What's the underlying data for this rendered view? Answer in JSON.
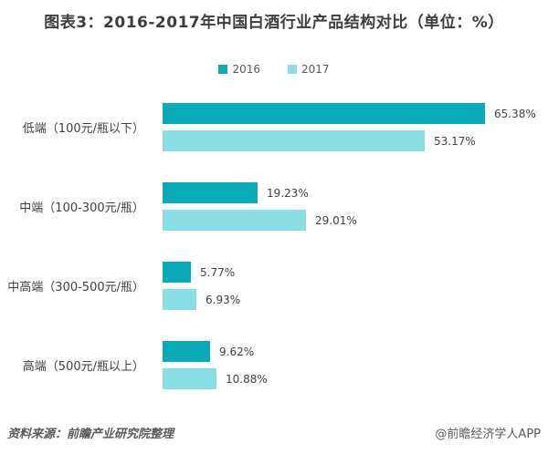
{
  "title": "图表3：2016-2017年中国白酒行业产品结构对比（单位：%）",
  "chart_data": {
    "type": "bar",
    "orientation": "horizontal",
    "title": "图表3：2016-2017年中国白酒行业产品结构对比（单位：%）",
    "unit": "%",
    "categories": [
      "低端（100元/瓶以下）",
      "中端（100-300元/瓶）",
      "中高端（300-500元/瓶）",
      "高端（500元/瓶以上）"
    ],
    "series": [
      {
        "name": "2016",
        "color": "#0baab8",
        "values": [
          65.38,
          19.23,
          5.77,
          9.62
        ],
        "labels": [
          "65.38%",
          "19.23%",
          "5.77%",
          "9.62%"
        ]
      },
      {
        "name": "2017",
        "color": "#8adfe5",
        "values": [
          53.17,
          29.01,
          6.93,
          10.88
        ],
        "labels": [
          "53.17%",
          "29.01%",
          "6.93%",
          "10.88%"
        ]
      }
    ],
    "xlim": [
      0,
      70
    ],
    "grid": false,
    "legend_position": "top-center",
    "value_labels": "outside-end"
  },
  "footer": {
    "source": "资料来源：前瞻产业研究院整理",
    "watermark": "@前瞻经济学人APP"
  },
  "colors": {
    "series_2016": "#0baab8",
    "series_2017": "#8adfe5",
    "title_text": "#3d3d3d",
    "label_text": "#404040",
    "footer_text": "#595959",
    "background": "#ffffff"
  }
}
